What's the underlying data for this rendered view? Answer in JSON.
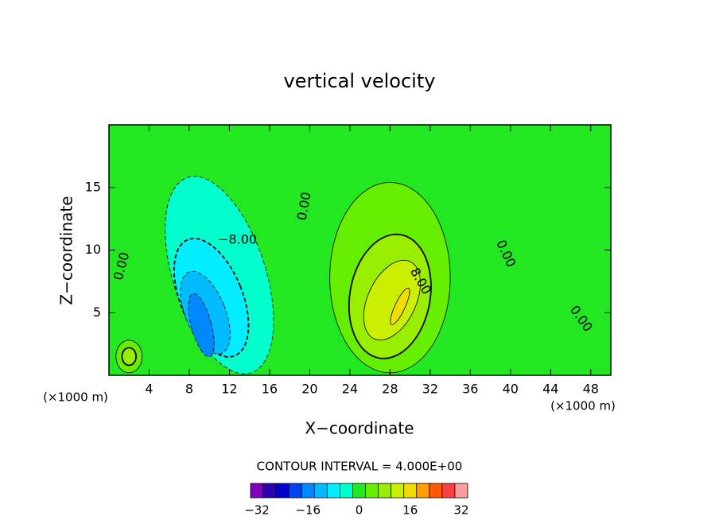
{
  "chart_data": {
    "type": "contour",
    "title": "vertical velocity",
    "x_label": "X−coordinate",
    "y_label": "Z−coordinate",
    "x_unit": "(×1000 m)",
    "y_unit": "(×1000 m)",
    "xlim": [
      0,
      50
    ],
    "ylim": [
      0,
      20
    ],
    "xticks": [
      4,
      8,
      12,
      16,
      20,
      24,
      28,
      32,
      36,
      40,
      44,
      48
    ],
    "yticks": [
      5,
      10,
      15
    ],
    "regions": [
      {
        "x": 11,
        "y": 8,
        "rx": 4.6,
        "ry": 8.2,
        "angle": -18,
        "level": -4
      },
      {
        "x": 10.2,
        "y": 6.2,
        "rx": 3.1,
        "ry": 5,
        "angle": -22,
        "level": -8
      },
      {
        "x": 9.6,
        "y": 5,
        "rx": 2,
        "ry": 3.5,
        "angle": -22,
        "level": -12
      },
      {
        "x": 9.2,
        "y": 4,
        "rx": 1,
        "ry": 2.6,
        "angle": -15,
        "level": -16
      },
      {
        "x": 28,
        "y": 7.8,
        "rx": 6,
        "ry": 7.6,
        "angle": 0,
        "level": 4
      },
      {
        "x": 28,
        "y": 6.3,
        "rx": 4,
        "ry": 5,
        "angle": 10,
        "level": 8
      },
      {
        "x": 28.2,
        "y": 6,
        "rx": 2.4,
        "ry": 3.4,
        "angle": 25,
        "level": 12
      },
      {
        "x": 29,
        "y": 5.5,
        "rx": 0.5,
        "ry": 1.6,
        "angle": 25,
        "level": 16
      },
      {
        "x": 2,
        "y": 1.5,
        "rx": 1.3,
        "ry": 1.3,
        "angle": 0,
        "level": 4
      },
      {
        "x": 2,
        "y": 1.5,
        "rx": 0.7,
        "ry": 0.7,
        "angle": 0,
        "level": 8
      }
    ],
    "contour_labels": [
      {
        "value": 0,
        "label": "0.00",
        "x": 19.5,
        "y": 13.5,
        "angle": -80
      },
      {
        "value": -8,
        "label": "−8.00",
        "x": 12.8,
        "y": 10.8,
        "angle": 0
      },
      {
        "value": 8,
        "label": "8.00",
        "x": 31,
        "y": 7.5,
        "angle": 60
      },
      {
        "value": 0,
        "label": "0.00",
        "x": 1.3,
        "y": 8.7,
        "angle": -75
      },
      {
        "value": 0,
        "label": "0.00",
        "x": 39.5,
        "y": 9.7,
        "angle": 65
      },
      {
        "value": 0,
        "label": "0.00",
        "x": 47,
        "y": 4.5,
        "angle": 55
      }
    ],
    "contour_interval_text": "CONTOUR INTERVAL = 4.000E+00",
    "colorbar": {
      "clim": [
        -34,
        34
      ],
      "colors": [
        "#8000c0",
        "#2a00b0",
        "#0000d0",
        "#0044f0",
        "#0088ff",
        "#00bbff",
        "#00eeff",
        "#00ffcc",
        "#22e822",
        "#66ee00",
        "#99ee00",
        "#ccee00",
        "#f0dd00",
        "#ffa000",
        "#ff5a00",
        "#ff4040",
        "#ff9c9c"
      ],
      "ticks": [
        {
          "value": -32,
          "label": "−32"
        },
        {
          "value": -16,
          "label": "−16"
        },
        0,
        16,
        32
      ]
    }
  }
}
